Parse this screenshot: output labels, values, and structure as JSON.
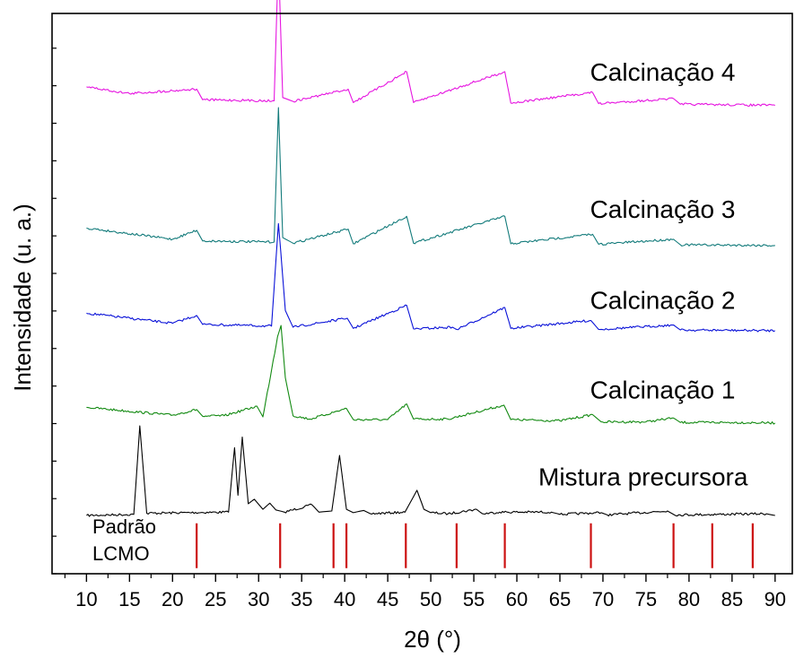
{
  "chart_data": {
    "type": "line",
    "xlabel": "2θ (°)",
    "ylabel": "Intensidade (u. a.)",
    "xlim": [
      6,
      92
    ],
    "ylim": [
      0,
      100
    ],
    "grid": false,
    "x_ticks": [
      10,
      15,
      20,
      25,
      30,
      35,
      40,
      45,
      50,
      55,
      60,
      65,
      70,
      75,
      80,
      85,
      90
    ],
    "x_tick_labels": [
      "10",
      "15",
      "20",
      "25",
      "30",
      "35",
      "40",
      "45",
      "50",
      "55",
      "60",
      "65",
      "70",
      "75",
      "80",
      "85",
      "90"
    ],
    "series": [
      {
        "name": "Mistura precursora",
        "color": "#000000",
        "x": [
          10,
          15.5,
          16.2,
          17,
          26.5,
          27.2,
          27.6,
          28.1,
          28.8,
          29.5,
          30.5,
          31.3,
          32,
          33,
          36.2,
          37,
          38.5,
          39.4,
          40.2,
          41,
          42.2,
          43,
          47,
          48.4,
          49.2,
          50,
          52,
          55.3,
          56,
          58,
          64,
          65,
          69.8,
          70.5,
          77.5,
          78.3,
          89,
          90
        ],
        "y": [
          10.4,
          10.6,
          26.4,
          10.8,
          11,
          22.5,
          14,
          24.4,
          12.5,
          13.3,
          11.5,
          12.6,
          11.4,
          11,
          12.3,
          11,
          11.2,
          21.1,
          11.5,
          10.9,
          11.3,
          10.7,
          11,
          14.9,
          11.5,
          10.9,
          10.7,
          11.5,
          10.7,
          11,
          11,
          10.6,
          10.9,
          10.5,
          11.2,
          10.5,
          10.7,
          10.4
        ]
      },
      {
        "name": "Calcinação 1",
        "color": "#138a12",
        "x": [
          10,
          20,
          22.8,
          23.5,
          26,
          29.8,
          30.5,
          32.2,
          32.6,
          33.1,
          34,
          36,
          40.2,
          41,
          45,
          47.2,
          48,
          52,
          58.5,
          59.3,
          65,
          68.8,
          69.8,
          75,
          78.2,
          79,
          85,
          90
        ],
        "y": [
          29.7,
          28.3,
          29.3,
          28.1,
          28.2,
          29.9,
          28,
          42.3,
          44.3,
          35,
          28.2,
          27.6,
          29.5,
          27.5,
          27.5,
          30.3,
          27.6,
          27.6,
          30.1,
          27.5,
          27.3,
          28.4,
          27.1,
          27.1,
          27.8,
          27,
          27,
          26.9
        ]
      },
      {
        "name": "Calcinação 2",
        "color": "#0a12d8",
        "x": [
          10,
          20,
          22.8,
          23.5,
          31.5,
          32.3,
          32.7,
          33.1,
          34,
          40.3,
          41,
          47.2,
          48,
          52.5,
          53,
          58.6,
          59.3,
          68.6,
          69.5,
          78.2,
          79,
          90
        ],
        "y": [
          46.5,
          44.7,
          46.1,
          44.5,
          44.2,
          62.5,
          55,
          47,
          44,
          45.6,
          43.8,
          47.9,
          43.7,
          44,
          43.6,
          47.5,
          43.8,
          45.2,
          43.6,
          44.4,
          43.5,
          43.4
        ]
      },
      {
        "name": "Calcinação 3",
        "color": "#137b7b",
        "x": [
          10,
          20,
          22.8,
          23.5,
          31.8,
          32.3,
          32.8,
          34,
          40.4,
          41,
          47.2,
          48,
          58.6,
          59.3,
          68.8,
          69.5,
          78.2,
          79,
          90
        ],
        "y": [
          61.7,
          59.7,
          61.3,
          59.4,
          59.2,
          83.2,
          60,
          59,
          61.5,
          58.9,
          63.8,
          59,
          63.8,
          58.9,
          60.6,
          58.8,
          59.7,
          58.7,
          58.6
        ]
      },
      {
        "name": "Calcinação 4",
        "color": "#e615e0",
        "x": [
          10,
          15,
          22.8,
          23.5,
          31.8,
          32.3,
          32.8,
          34,
          40.4,
          41,
          47.2,
          48,
          58.6,
          59.3,
          68.8,
          69.5,
          78.2,
          79,
          90
        ],
        "y": [
          86.9,
          85.7,
          86.5,
          84.6,
          84.4,
          110.1,
          85,
          84.3,
          86.5,
          84.1,
          89.6,
          84.1,
          89.6,
          84,
          85.9,
          83.9,
          84.8,
          83.8,
          83.6
        ]
      }
    ],
    "reference": {
      "name_lines": [
        "Padrão",
        "LCMO"
      ],
      "color": "#cc1111",
      "peaks": [
        22.8,
        32.5,
        38.7,
        40.2,
        47.1,
        53,
        58.6,
        68.6,
        78.2,
        82.7,
        87.4
      ],
      "ymin": 1,
      "ymax": 9
    },
    "labels": [
      {
        "text": "Calcinação 4",
        "x": 68.5,
        "y": 88
      },
      {
        "text": "Calcinação 3",
        "x": 68.5,
        "y": 63.5
      },
      {
        "text": "Calcinação 2",
        "x": 68.5,
        "y": 47.3
      },
      {
        "text": "Calcinação 1",
        "x": 68.5,
        "y": 31.3
      },
      {
        "text": "Mistura precursora",
        "x": 62.5,
        "y": 15.8
      }
    ]
  }
}
